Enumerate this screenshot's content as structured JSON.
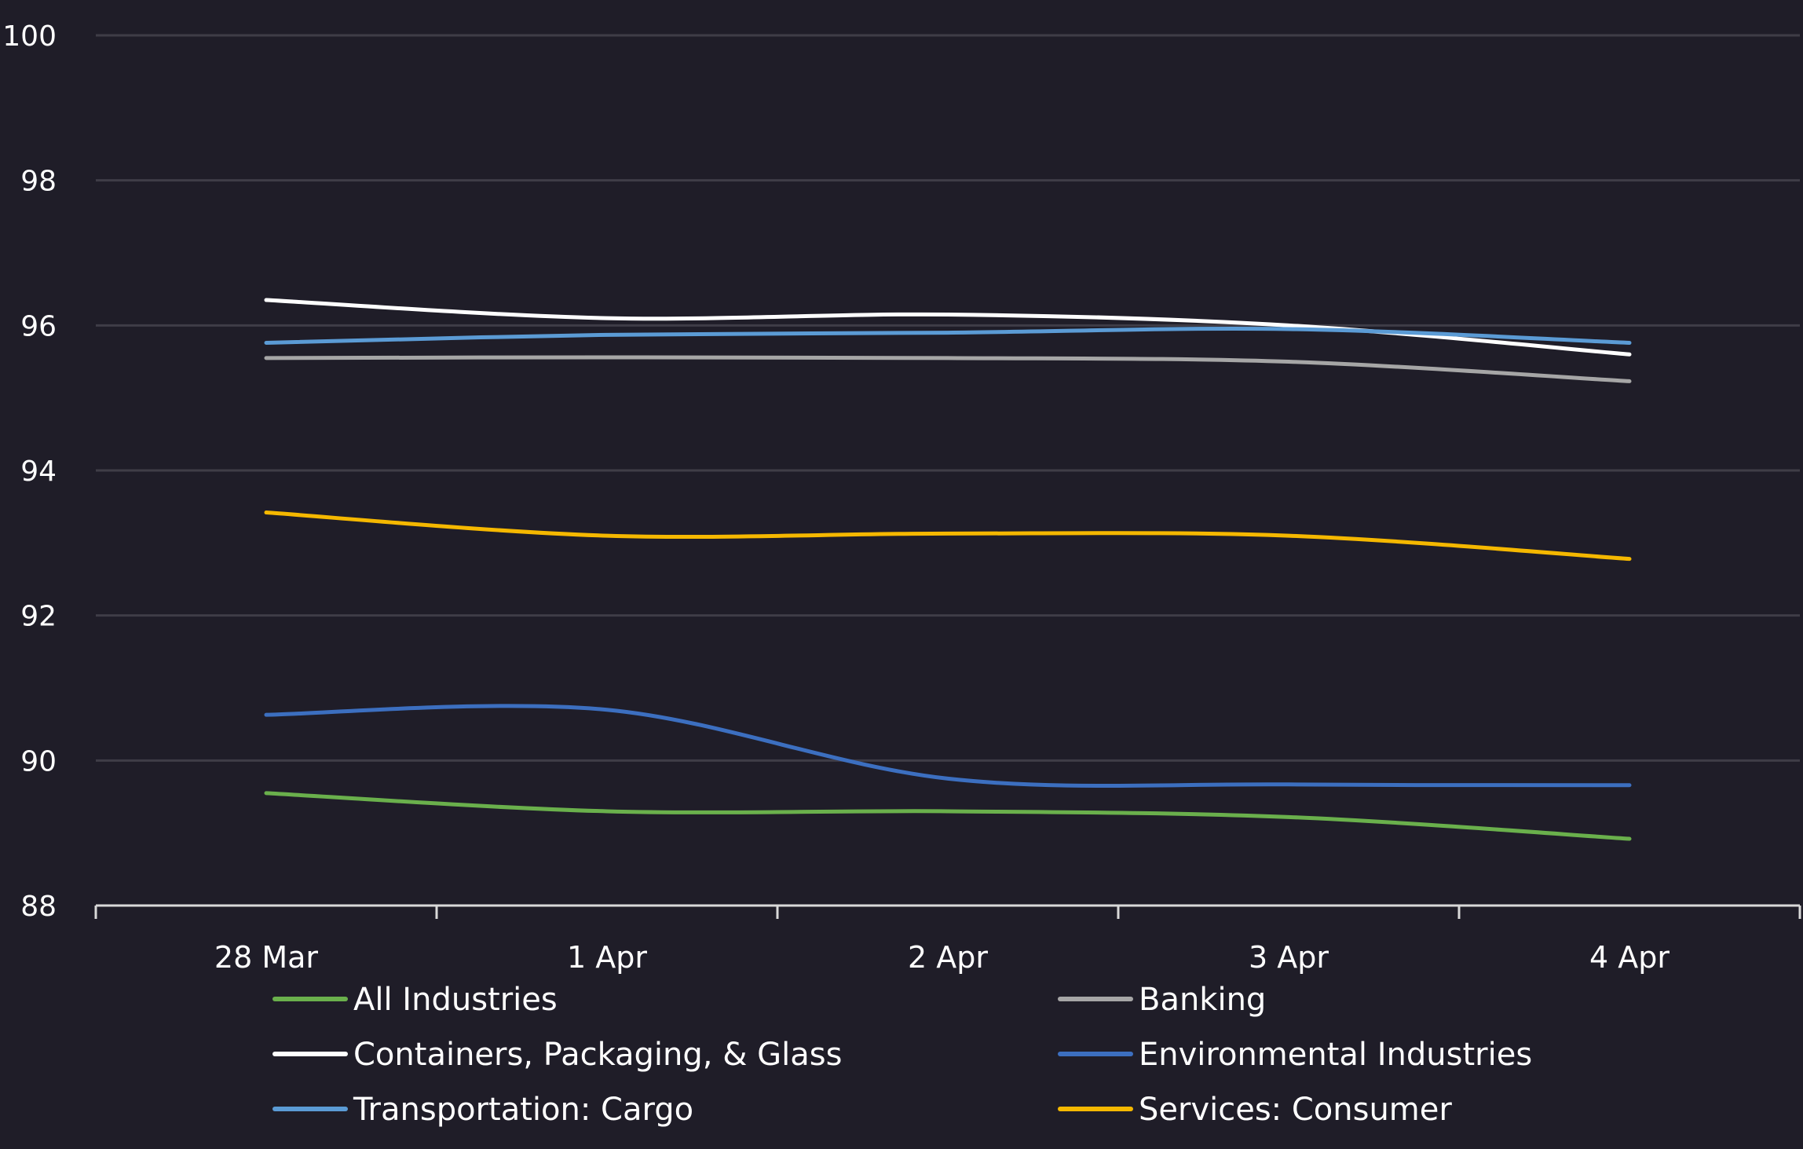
{
  "chart_data": {
    "type": "line",
    "title": "",
    "xlabel": "",
    "ylabel": "",
    "categories": [
      "28 Mar",
      "1 Apr",
      "2 Apr",
      "3 Apr",
      "4 Apr"
    ],
    "ylim": [
      88,
      100
    ],
    "yticks": [
      "100",
      "98",
      "96",
      "94",
      "92",
      "90",
      "88"
    ],
    "grid": true,
    "legend": "bottom",
    "series": [
      {
        "name": "All Industries",
        "color": "#6ab04c",
        "values": [
          89.55,
          89.3,
          89.3,
          89.22,
          88.92
        ]
      },
      {
        "name": "Banking",
        "color": "#a6a6a6",
        "values": [
          95.55,
          95.56,
          95.55,
          95.5,
          95.23
        ]
      },
      {
        "name": "Containers, Packaging, & Glass",
        "color": "#ffffff",
        "values": [
          96.35,
          96.1,
          96.15,
          96.0,
          95.6
        ]
      },
      {
        "name": "Environmental Industries",
        "color": "#3c6fc0",
        "values": [
          90.63,
          90.7,
          89.75,
          89.67,
          89.66
        ]
      },
      {
        "name": "Transportation: Cargo",
        "color": "#5b9bd5",
        "values": [
          95.76,
          95.87,
          95.9,
          95.95,
          95.76
        ]
      },
      {
        "name": "Services: Consumer",
        "color": "#f5b800",
        "values": [
          93.42,
          93.1,
          93.13,
          93.1,
          92.78
        ]
      }
    ]
  }
}
